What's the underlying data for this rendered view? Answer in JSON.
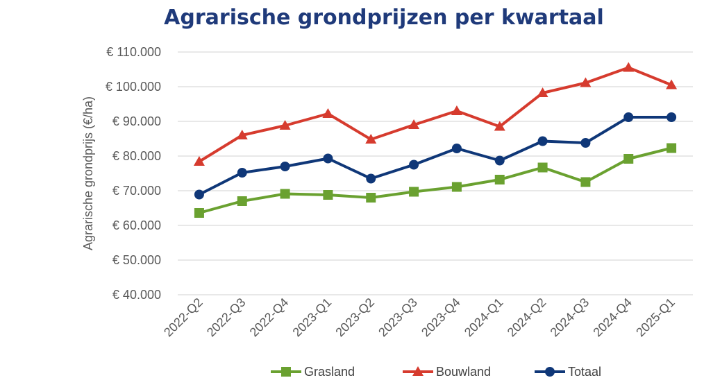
{
  "chart_data": {
    "type": "line",
    "title": "Agrarische grondprijzen per kwartaal",
    "xlabel": "",
    "ylabel": "Agrarische grondprijs (€/ha)",
    "ylim": [
      40000,
      110000
    ],
    "yticks": [
      40000,
      50000,
      60000,
      70000,
      80000,
      90000,
      100000,
      110000
    ],
    "ytick_labels": [
      "€ 40.000",
      "€ 50.000",
      "€ 60.000",
      "€ 70.000",
      "€ 80.000",
      "€ 90.000",
      "€ 100.000",
      "€ 110.000"
    ],
    "grid": true,
    "legend_position": "bottom",
    "categories": [
      "2022-Q2",
      "2022-Q3",
      "2022-Q4",
      "2023-Q1",
      "2023-Q2",
      "2023-Q3",
      "2023-Q4",
      "2024-Q1",
      "2024-Q2",
      "2024-Q3",
      "2024-Q4",
      "2025-Q1"
    ],
    "series": [
      {
        "name": "Grasland",
        "color": "#6aa130",
        "marker": "square",
        "values": [
          63600,
          67000,
          69100,
          68800,
          68000,
          69700,
          71100,
          73200,
          76700,
          72500,
          79200,
          82300
        ]
      },
      {
        "name": "Bouwland",
        "color": "#d63b2e",
        "marker": "triangle",
        "values": [
          78400,
          86000,
          88800,
          92200,
          84800,
          89000,
          93000,
          88500,
          98200,
          101100,
          105500,
          100500
        ]
      },
      {
        "name": "Totaal",
        "color": "#0f3778",
        "marker": "circle",
        "values": [
          68900,
          75200,
          77000,
          79300,
          73500,
          77500,
          82200,
          78700,
          84300,
          83800,
          91200,
          91200
        ]
      }
    ]
  }
}
